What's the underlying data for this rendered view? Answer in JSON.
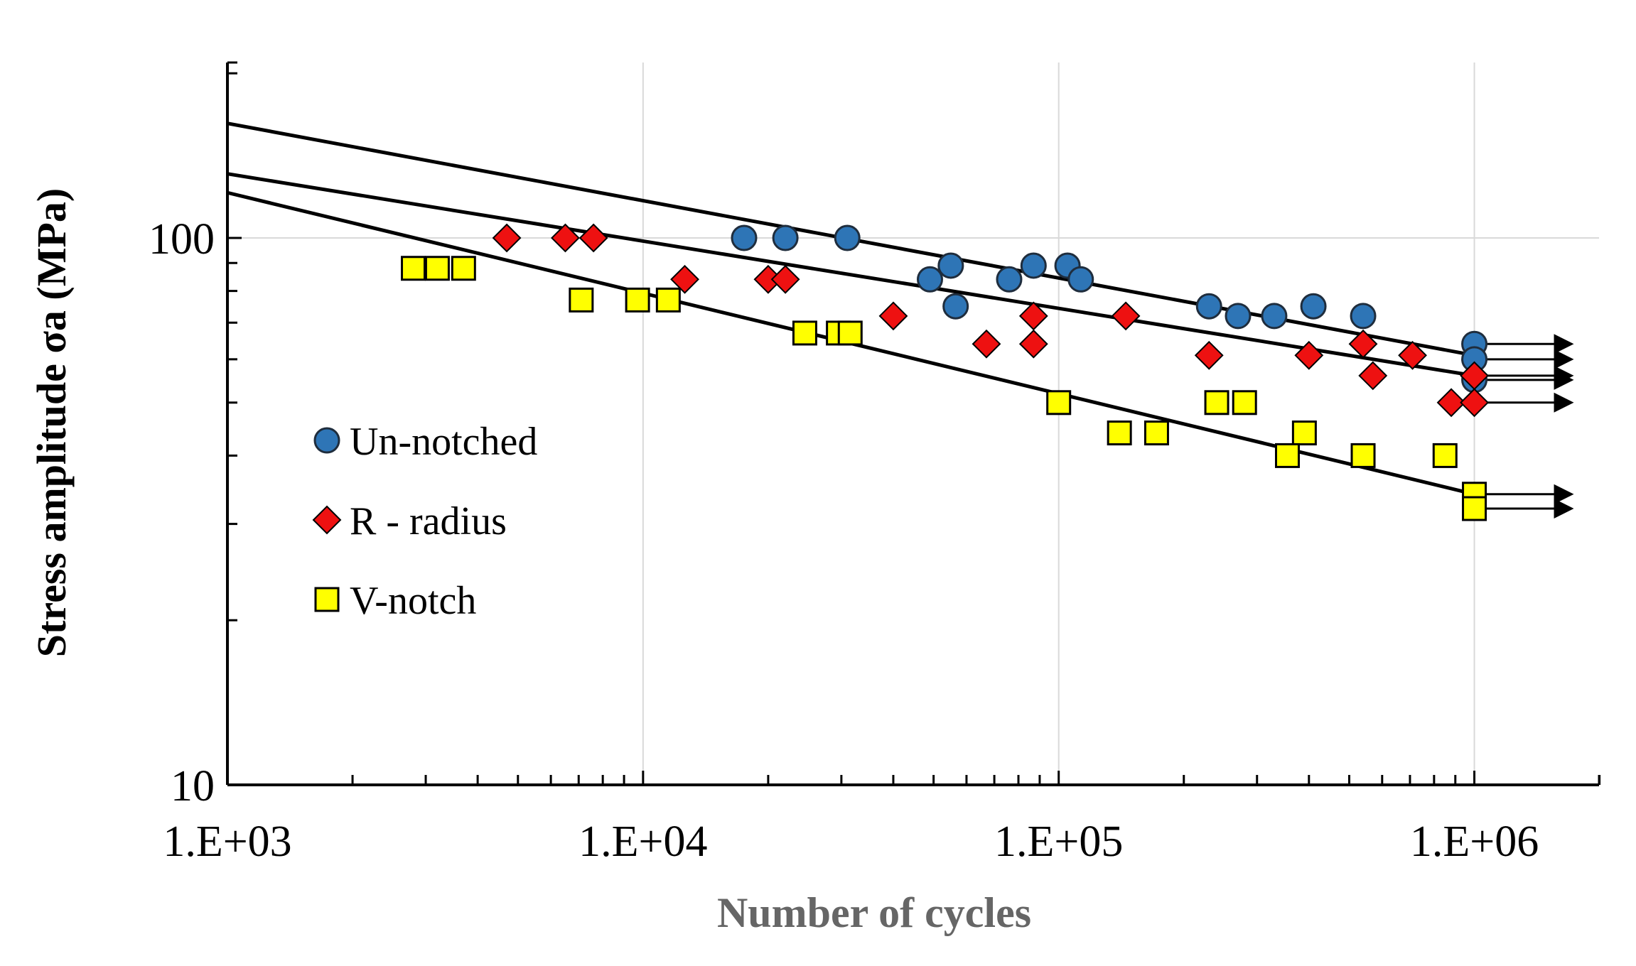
{
  "chart_data": {
    "type": "scatter",
    "title": "",
    "xlabel": "Number of cycles",
    "ylabel": "Stress amplitude σa (MPa)",
    "x_scale": "log",
    "y_scale": "log",
    "xlim": [
      1000,
      1000000
    ],
    "ylim": [
      10,
      100
    ],
    "x_tick_labels": [
      "1.E+03",
      "1.E+04",
      "1.E+05",
      "1.E+06"
    ],
    "y_tick_labels": [
      "10",
      "100"
    ],
    "grid": true,
    "legend_position": "left-middle",
    "series": [
      {
        "name": "Un-notched",
        "marker": "circle",
        "color": "#2e75b6",
        "points": [
          [
            17500,
            100
          ],
          [
            22000,
            100
          ],
          [
            31000,
            100
          ],
          [
            49000,
            84
          ],
          [
            55000,
            89
          ],
          [
            56500,
            75
          ],
          [
            76000,
            84
          ],
          [
            87000,
            89
          ],
          [
            105000,
            89
          ],
          [
            113000,
            84
          ],
          [
            230000,
            75
          ],
          [
            270000,
            72
          ],
          [
            330000,
            72
          ],
          [
            410000,
            75
          ],
          [
            540000,
            72
          ],
          [
            1000000,
            64
          ],
          [
            1000000,
            60
          ],
          [
            1000000,
            55
          ]
        ],
        "runouts": [
          [
            1000000,
            64
          ],
          [
            1000000,
            60
          ],
          [
            1000000,
            55
          ]
        ],
        "fit_line": {
          "x": [
            1000,
            1000000
          ],
          "y": [
            162,
            61
          ]
        }
      },
      {
        "name": "R - radius",
        "marker": "diamond",
        "color": "#ee1111",
        "points": [
          [
            4700,
            100
          ],
          [
            6500,
            100
          ],
          [
            7600,
            100
          ],
          [
            12600,
            84
          ],
          [
            20000,
            84
          ],
          [
            22000,
            84
          ],
          [
            40000,
            72
          ],
          [
            67000,
            64
          ],
          [
            87000,
            64
          ],
          [
            87000,
            72
          ],
          [
            145000,
            72
          ],
          [
            230000,
            61
          ],
          [
            400000,
            61
          ],
          [
            540000,
            64
          ],
          [
            570000,
            56
          ],
          [
            710000,
            61
          ],
          [
            880000,
            50
          ],
          [
            1000000,
            50
          ],
          [
            1000000,
            56
          ]
        ],
        "runouts": [
          [
            1000000,
            50
          ],
          [
            1000000,
            56
          ]
        ],
        "fit_line": {
          "x": [
            1000,
            1000000
          ],
          "y": [
            131,
            56
          ]
        }
      },
      {
        "name": "V-notch",
        "marker": "square",
        "color": "#ffff00",
        "points": [
          [
            2800,
            88
          ],
          [
            3200,
            88
          ],
          [
            3700,
            88
          ],
          [
            7100,
            77
          ],
          [
            9700,
            77
          ],
          [
            11500,
            77
          ],
          [
            24500,
            67
          ],
          [
            29500,
            67
          ],
          [
            31500,
            67
          ],
          [
            100000,
            50
          ],
          [
            240000,
            50
          ],
          [
            280000,
            50
          ],
          [
            140000,
            44
          ],
          [
            172000,
            44
          ],
          [
            390000,
            44
          ],
          [
            355000,
            40
          ],
          [
            540000,
            40
          ],
          [
            850000,
            40
          ],
          [
            1000000,
            34
          ],
          [
            1000000,
            32
          ]
        ],
        "runouts": [
          [
            1000000,
            34
          ],
          [
            1000000,
            32
          ]
        ],
        "fit_line": {
          "x": [
            1000,
            1000000
          ],
          "y": [
            121,
            34
          ]
        }
      }
    ]
  }
}
